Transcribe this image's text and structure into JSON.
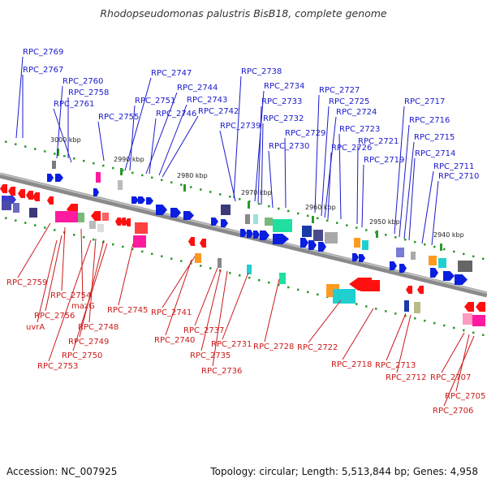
{
  "title": "Rhodopseudomonas palustris BisB18, complete genome",
  "accession": "Accession: NC_007925",
  "summary": "Topology: circular; Length: 5,513,844 bp; Genes: 4,958",
  "colors": {
    "top_labels": "#1a1acc",
    "bottom_labels": "#cc1a1a",
    "backbone": "#8a8a8a",
    "tick": "#2a9a2a"
  },
  "scale_labels": [
    "3000 kbp",
    "2990 kbp",
    "2980 kbp",
    "2970 kbp",
    "2960 kbp",
    "2950 kbp",
    "2940 kbp"
  ],
  "top_labels": [
    "RPC_2769",
    "RPC_2767",
    "RPC_2760",
    "RPC_2758",
    "RPC_2761",
    "RPC_2755",
    "RPC_2747",
    "RPC_2751",
    "RPC_2744",
    "RPC_2746",
    "RPC_2743",
    "RPC_2742",
    "RPC_2738",
    "RPC_2734",
    "RPC_2739",
    "RPC_2733",
    "RPC_2732",
    "RPC_2729",
    "RPC_2730",
    "RPC_2727",
    "RPC_2725",
    "RPC_2724",
    "RPC_2726",
    "RPC_2723",
    "RPC_2721",
    "RPC_2719",
    "RPC_2717",
    "RPC_2716",
    "RPC_2715",
    "RPC_2714",
    "RPC_2711",
    "RPC_2710"
  ],
  "bottom_labels": [
    "RPC_2759",
    "RPC_2754",
    "mazG",
    "RPC_2756",
    "uvrA",
    "RPC_2748",
    "RPC_2749",
    "RPC_2750",
    "RPC_2753",
    "RPC_2745",
    "RPC_2741",
    "RPC_2740",
    "RPC_2737",
    "RPC_2735",
    "RPC_2736",
    "RPC_2731",
    "RPC_2728",
    "RPC_2722",
    "RPC_2718",
    "RPC_2713",
    "RPC_2712",
    "RPC_2707",
    "RPC_2705",
    "RPC_2706"
  ]
}
